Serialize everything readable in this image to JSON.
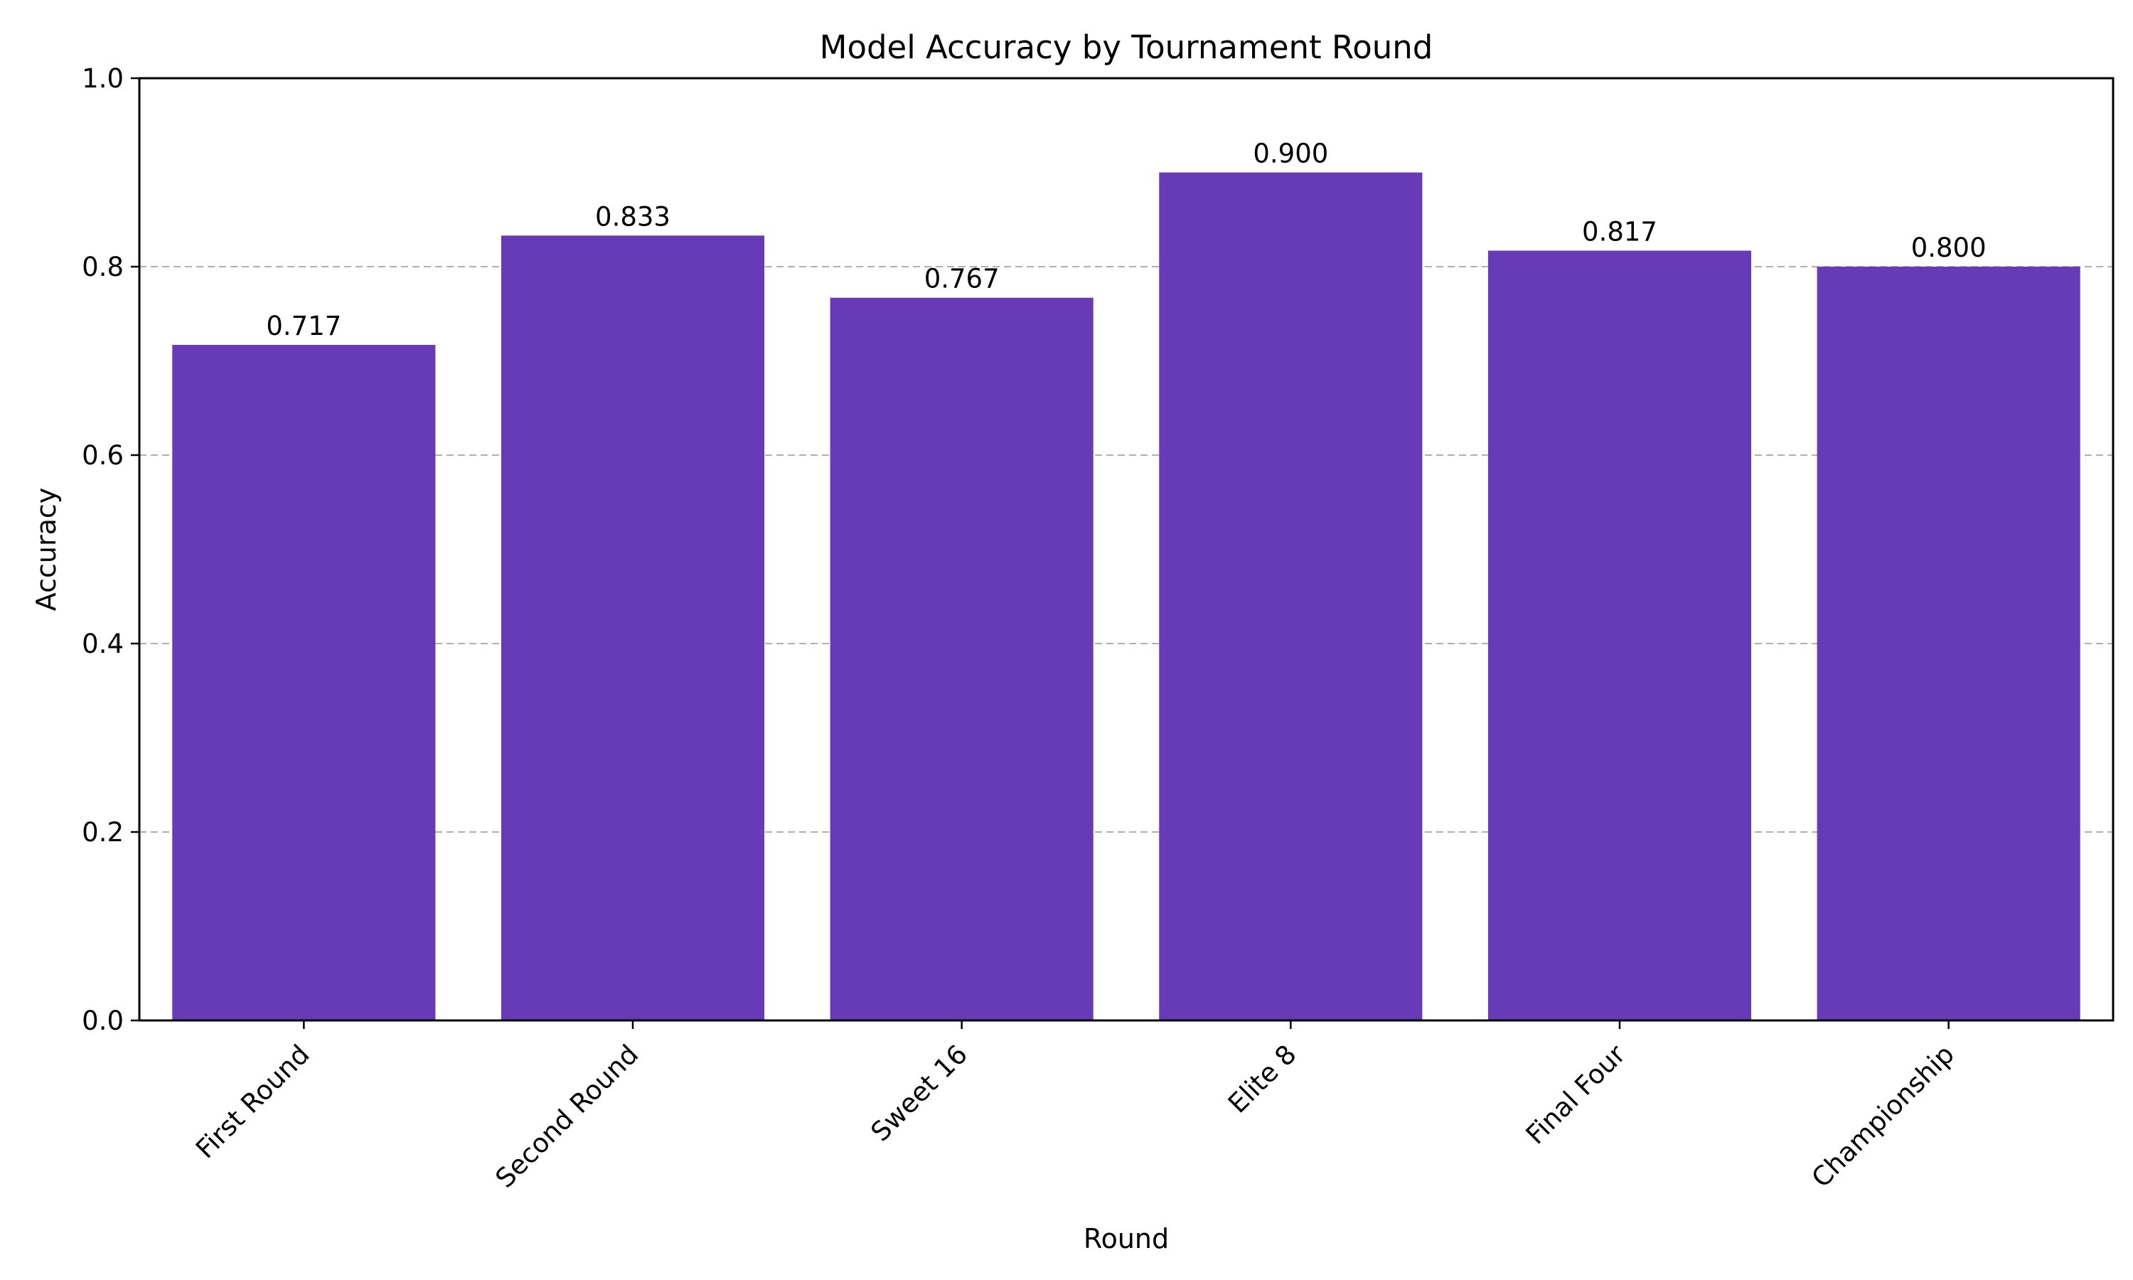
{
  "chart_data": {
    "type": "bar",
    "title": "Model Accuracy by Tournament Round",
    "xlabel": "Round",
    "ylabel": "Accuracy",
    "categories": [
      "First Round",
      "Second Round",
      "Sweet 16",
      "Elite 8",
      "Final Four",
      "Championship"
    ],
    "values": [
      0.717,
      0.833,
      0.767,
      0.9,
      0.817,
      0.8
    ],
    "data_labels": [
      "0.717",
      "0.833",
      "0.767",
      "0.900",
      "0.817",
      "0.800"
    ],
    "ylim": [
      0,
      1.0
    ],
    "yticks": [
      0.0,
      0.2,
      0.4,
      0.6,
      0.8,
      1.0
    ],
    "ytick_labels": [
      "0.0",
      "0.2",
      "0.4",
      "0.6",
      "0.8",
      "1.0"
    ],
    "grid": "y-dashed",
    "legend": "none",
    "bar_color": "#673ab7"
  }
}
